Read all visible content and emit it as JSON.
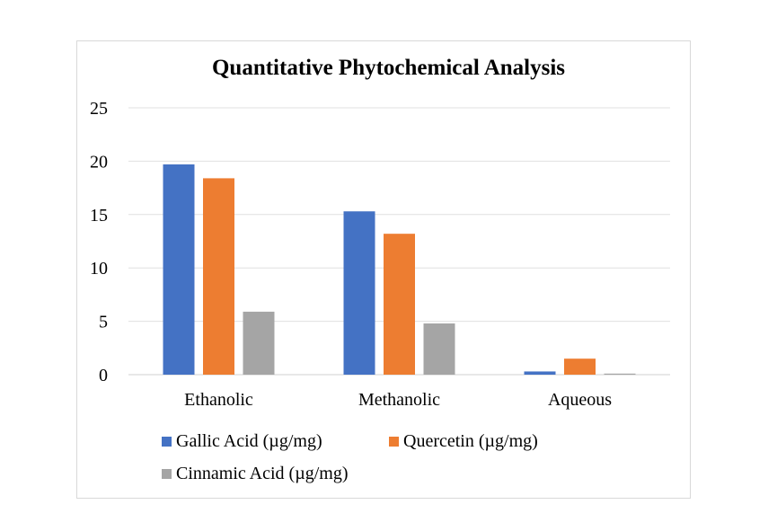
{
  "chart_data": {
    "type": "bar",
    "title": "Quantitative Phytochemical Analysis",
    "categories": [
      "Ethanolic",
      "Methanolic",
      "Aqueous"
    ],
    "series": [
      {
        "name": "Gallic Acid (µg/mg)",
        "color": "#4472c4",
        "values": [
          19.7,
          15.3,
          0.3
        ]
      },
      {
        "name": "Quercetin (µg/mg)",
        "color": "#ed7d31",
        "values": [
          18.4,
          13.2,
          1.5
        ]
      },
      {
        "name": "Cinnamic Acid (µg/mg)",
        "color": "#a5a5a5",
        "values": [
          5.9,
          4.8,
          0.1
        ]
      }
    ],
    "ylim": [
      0,
      25
    ],
    "yticks": [
      "0",
      "5",
      "10",
      "15",
      "20",
      "25"
    ],
    "grid": true,
    "legend": "bottom"
  }
}
